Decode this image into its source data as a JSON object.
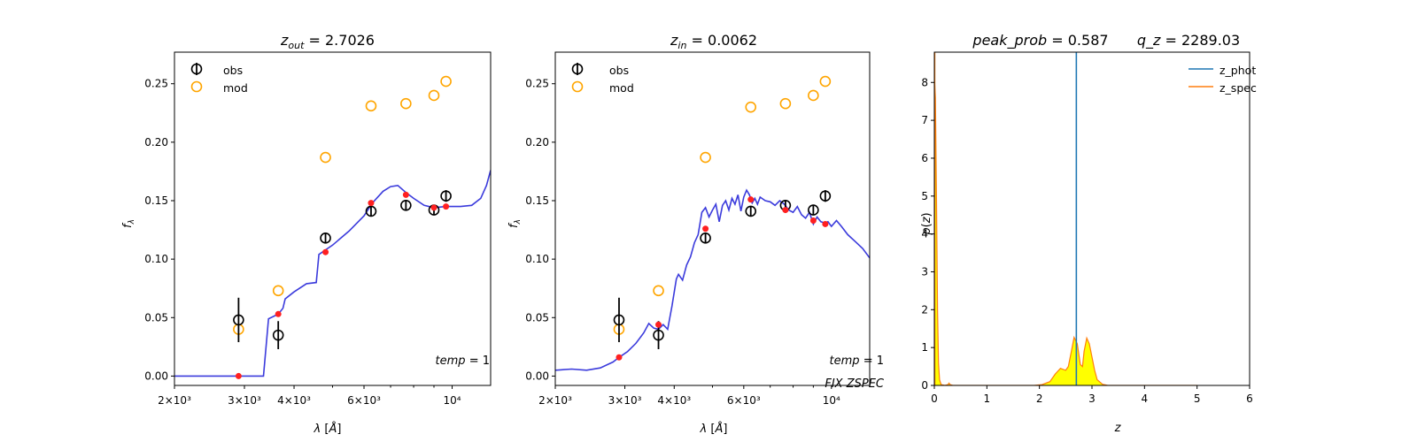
{
  "colors": {
    "obs": "#000000",
    "mod": "#ffa500",
    "model_dot": "#ff2020",
    "sed": "#3b3bdc",
    "z_phot": "#1f77b4",
    "z_spec": "#ff7f0e",
    "pz_fill": "#ffff00"
  },
  "chart_data": [
    {
      "type": "scatter",
      "title": "z_out = 2.7026",
      "xlabel": "λ [Å]",
      "ylabel": "f_λ",
      "xscale": "log",
      "xlim": [
        2000,
        12500
      ],
      "ylim": [
        -0.008,
        0.277
      ],
      "x_ticks": [
        {
          "value": 2000,
          "label": "2×10³"
        },
        {
          "value": 3000,
          "label": "3×10³"
        },
        {
          "value": 4000,
          "label": "4×10³"
        },
        {
          "value": 6000,
          "label": "6×10³"
        },
        {
          "value": 10000,
          "label": "10⁴"
        }
      ],
      "y_ticks": [
        {
          "value": 0,
          "label": "0.00"
        },
        {
          "value": 0.05,
          "label": "0.05"
        },
        {
          "value": 0.1,
          "label": "0.10"
        },
        {
          "value": 0.15,
          "label": "0.15"
        },
        {
          "value": 0.2,
          "label": "0.20"
        },
        {
          "value": 0.25,
          "label": "0.25"
        }
      ],
      "legend": {
        "position": "top-left",
        "entries": [
          "obs",
          "mod"
        ]
      },
      "annotations": [
        "temp = 1"
      ],
      "obs": [
        {
          "x": 2900,
          "y": 0.048,
          "err": 0.019
        },
        {
          "x": 3650,
          "y": 0.035,
          "err": 0.012
        },
        {
          "x": 4800,
          "y": 0.118,
          "err": 0.004
        },
        {
          "x": 6250,
          "y": 0.141,
          "err": 0.004
        },
        {
          "x": 7650,
          "y": 0.146,
          "err": 0.004
        },
        {
          "x": 9000,
          "y": 0.142,
          "err": 0.004
        },
        {
          "x": 9650,
          "y": 0.154,
          "err": 0.005
        }
      ],
      "mod": [
        {
          "x": 2900,
          "y": 0.04
        },
        {
          "x": 3650,
          "y": 0.073
        },
        {
          "x": 4800,
          "y": 0.187
        },
        {
          "x": 6250,
          "y": 0.231
        },
        {
          "x": 7650,
          "y": 0.233
        },
        {
          "x": 9000,
          "y": 0.24
        },
        {
          "x": 9650,
          "y": 0.252
        }
      ],
      "model_points": [
        {
          "x": 2900,
          "y": 0.0
        },
        {
          "x": 3650,
          "y": 0.053
        },
        {
          "x": 4800,
          "y": 0.106
        },
        {
          "x": 6250,
          "y": 0.148
        },
        {
          "x": 7650,
          "y": 0.155
        },
        {
          "x": 9000,
          "y": 0.144
        },
        {
          "x": 9650,
          "y": 0.145
        }
      ],
      "sed_line": [
        [
          2000,
          0.0
        ],
        [
          3350,
          0.0
        ],
        [
          3450,
          0.049
        ],
        [
          3600,
          0.052
        ],
        [
          3650,
          0.053
        ],
        [
          3750,
          0.058
        ],
        [
          3800,
          0.066
        ],
        [
          4000,
          0.072
        ],
        [
          4300,
          0.079
        ],
        [
          4550,
          0.08
        ],
        [
          4620,
          0.104
        ],
        [
          5000,
          0.112
        ],
        [
          5500,
          0.124
        ],
        [
          6000,
          0.137
        ],
        [
          6300,
          0.148
        ],
        [
          6700,
          0.158
        ],
        [
          7000,
          0.162
        ],
        [
          7300,
          0.163
        ],
        [
          7650,
          0.157
        ],
        [
          8000,
          0.152
        ],
        [
          8500,
          0.146
        ],
        [
          9000,
          0.144
        ],
        [
          9650,
          0.145
        ],
        [
          10500,
          0.145
        ],
        [
          11200,
          0.146
        ],
        [
          11800,
          0.152
        ],
        [
          12200,
          0.163
        ],
        [
          12500,
          0.176
        ]
      ]
    },
    {
      "type": "scatter",
      "title": "z_in = 0.0062",
      "xlabel": "λ [Å]",
      "ylabel": "f_λ",
      "xscale": "log",
      "xlim": [
        2000,
        12500
      ],
      "ylim": [
        -0.008,
        0.277
      ],
      "x_ticks": [
        {
          "value": 2000,
          "label": "2×10³"
        },
        {
          "value": 3000,
          "label": "3×10³"
        },
        {
          "value": 4000,
          "label": "4×10³"
        },
        {
          "value": 6000,
          "label": "6×10³"
        },
        {
          "value": 10000,
          "label": "10⁴"
        }
      ],
      "y_ticks": [
        {
          "value": 0,
          "label": "0.00"
        },
        {
          "value": 0.05,
          "label": "0.05"
        },
        {
          "value": 0.1,
          "label": "0.10"
        },
        {
          "value": 0.15,
          "label": "0.15"
        },
        {
          "value": 0.2,
          "label": "0.20"
        },
        {
          "value": 0.25,
          "label": "0.25"
        }
      ],
      "legend": {
        "position": "top-left",
        "entries": [
          "obs",
          "mod"
        ]
      },
      "annotations": [
        "temp = 1",
        "FIX ZSPEC"
      ],
      "obs": [
        {
          "x": 2900,
          "y": 0.048,
          "err": 0.019
        },
        {
          "x": 3650,
          "y": 0.035,
          "err": 0.012
        },
        {
          "x": 4800,
          "y": 0.118,
          "err": 0.004
        },
        {
          "x": 6250,
          "y": 0.141,
          "err": 0.004
        },
        {
          "x": 7650,
          "y": 0.146,
          "err": 0.004
        },
        {
          "x": 9000,
          "y": 0.142,
          "err": 0.004
        },
        {
          "x": 9650,
          "y": 0.154,
          "err": 0.005
        }
      ],
      "mod": [
        {
          "x": 2900,
          "y": 0.04
        },
        {
          "x": 3650,
          "y": 0.073
        },
        {
          "x": 4800,
          "y": 0.187
        },
        {
          "x": 6250,
          "y": 0.23
        },
        {
          "x": 7650,
          "y": 0.233
        },
        {
          "x": 9000,
          "y": 0.24
        },
        {
          "x": 9650,
          "y": 0.252
        }
      ],
      "model_points": [
        {
          "x": 2900,
          "y": 0.016
        },
        {
          "x": 3650,
          "y": 0.044
        },
        {
          "x": 4800,
          "y": 0.126
        },
        {
          "x": 6250,
          "y": 0.151
        },
        {
          "x": 7650,
          "y": 0.142
        },
        {
          "x": 9000,
          "y": 0.133
        },
        {
          "x": 9650,
          "y": 0.13
        }
      ],
      "sed_line": [
        [
          2000,
          0.005
        ],
        [
          2200,
          0.006
        ],
        [
          2400,
          0.005
        ],
        [
          2600,
          0.007
        ],
        [
          2800,
          0.012
        ],
        [
          2900,
          0.016
        ],
        [
          3050,
          0.021
        ],
        [
          3200,
          0.028
        ],
        [
          3350,
          0.037
        ],
        [
          3450,
          0.045
        ],
        [
          3550,
          0.041
        ],
        [
          3650,
          0.04
        ],
        [
          3750,
          0.044
        ],
        [
          3850,
          0.04
        ],
        [
          3950,
          0.06
        ],
        [
          4050,
          0.083
        ],
        [
          4100,
          0.087
        ],
        [
          4200,
          0.082
        ],
        [
          4300,
          0.095
        ],
        [
          4400,
          0.102
        ],
        [
          4500,
          0.114
        ],
        [
          4600,
          0.121
        ],
        [
          4700,
          0.14
        ],
        [
          4800,
          0.144
        ],
        [
          4900,
          0.136
        ],
        [
          5000,
          0.142
        ],
        [
          5100,
          0.147
        ],
        [
          5200,
          0.132
        ],
        [
          5300,
          0.146
        ],
        [
          5400,
          0.15
        ],
        [
          5500,
          0.142
        ],
        [
          5600,
          0.152
        ],
        [
          5700,
          0.147
        ],
        [
          5800,
          0.155
        ],
        [
          5900,
          0.141
        ],
        [
          6000,
          0.153
        ],
        [
          6100,
          0.159
        ],
        [
          6200,
          0.155
        ],
        [
          6300,
          0.148
        ],
        [
          6400,
          0.152
        ],
        [
          6500,
          0.147
        ],
        [
          6600,
          0.153
        ],
        [
          6800,
          0.15
        ],
        [
          7000,
          0.149
        ],
        [
          7200,
          0.146
        ],
        [
          7400,
          0.15
        ],
        [
          7600,
          0.147
        ],
        [
          7800,
          0.142
        ],
        [
          8000,
          0.14
        ],
        [
          8200,
          0.145
        ],
        [
          8400,
          0.138
        ],
        [
          8600,
          0.135
        ],
        [
          8800,
          0.14
        ],
        [
          9000,
          0.13
        ],
        [
          9200,
          0.136
        ],
        [
          9400,
          0.132
        ],
        [
          9600,
          0.131
        ],
        [
          9800,
          0.132
        ],
        [
          10000,
          0.128
        ],
        [
          10300,
          0.133
        ],
        [
          10600,
          0.128
        ],
        [
          11000,
          0.121
        ],
        [
          11500,
          0.115
        ],
        [
          12000,
          0.109
        ],
        [
          12500,
          0.101
        ]
      ]
    },
    {
      "type": "line",
      "title": "peak_prob = 0.587",
      "subtitle": "q_z = 2289.03",
      "xlabel": "z",
      "ylabel": "p(z)",
      "xlim": [
        0,
        6
      ],
      "ylim": [
        0,
        8.8
      ],
      "x_ticks": [
        0,
        1,
        2,
        3,
        4,
        5,
        6
      ],
      "y_ticks": [
        0,
        1,
        2,
        3,
        4,
        5,
        6,
        7,
        8
      ],
      "legend": {
        "position": "top-right",
        "entries": [
          "z_phot",
          "z_spec"
        ]
      },
      "z_phot": 2.7026,
      "z_spec": 0.0062,
      "pz_curve": [
        [
          0.0,
          8.8
        ],
        [
          0.005,
          8.0
        ],
        [
          0.02,
          7.6
        ],
        [
          0.04,
          5.0
        ],
        [
          0.06,
          2.0
        ],
        [
          0.08,
          0.6
        ],
        [
          0.1,
          0.15
        ],
        [
          0.13,
          0.02
        ],
        [
          0.2,
          0.0
        ],
        [
          0.26,
          0.02
        ],
        [
          0.28,
          0.06
        ],
        [
          0.3,
          0.02
        ],
        [
          0.35,
          0.0
        ],
        [
          1.0,
          0.0
        ],
        [
          1.9,
          0.0
        ],
        [
          2.05,
          0.02
        ],
        [
          2.2,
          0.1
        ],
        [
          2.3,
          0.3
        ],
        [
          2.4,
          0.45
        ],
        [
          2.5,
          0.4
        ],
        [
          2.55,
          0.5
        ],
        [
          2.6,
          0.85
        ],
        [
          2.66,
          1.27
        ],
        [
          2.72,
          1.1
        ],
        [
          2.78,
          0.55
        ],
        [
          2.82,
          0.5
        ],
        [
          2.85,
          0.9
        ],
        [
          2.9,
          1.25
        ],
        [
          2.95,
          1.1
        ],
        [
          3.0,
          0.75
        ],
        [
          3.05,
          0.4
        ],
        [
          3.1,
          0.15
        ],
        [
          3.2,
          0.03
        ],
        [
          3.3,
          0.0
        ],
        [
          5.0,
          0.0
        ]
      ]
    }
  ]
}
